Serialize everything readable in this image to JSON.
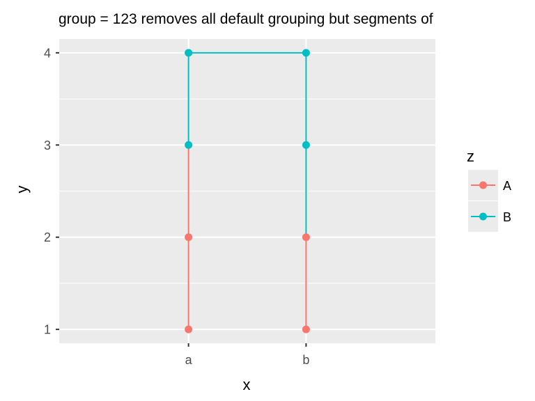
{
  "chart_data": {
    "type": "line",
    "title": "group = 123 removes all default grouping but segments of",
    "xlabel": "x",
    "ylabel": "y",
    "categories": [
      "a",
      "b"
    ],
    "yticks": [
      1,
      2,
      3,
      4
    ],
    "ylim": [
      0.85,
      4.15
    ],
    "grid": true,
    "legend": {
      "title": "z",
      "position": "right",
      "entries": [
        {
          "label": "A",
          "color": "#F8766D"
        },
        {
          "label": "B",
          "color": "#00BFC4"
        }
      ]
    },
    "points": [
      {
        "x": "a",
        "y": 1,
        "z": "A"
      },
      {
        "x": "a",
        "y": 2,
        "z": "A"
      },
      {
        "x": "a",
        "y": 3,
        "z": "B"
      },
      {
        "x": "a",
        "y": 4,
        "z": "B"
      },
      {
        "x": "b",
        "y": 4,
        "z": "B"
      },
      {
        "x": "b",
        "y": 3,
        "z": "B"
      },
      {
        "x": "b",
        "y": 2,
        "z": "A"
      },
      {
        "x": "b",
        "y": 1,
        "z": "A"
      }
    ],
    "colors": {
      "A": "#F8766D",
      "B": "#00BFC4",
      "panel": "#EBEBEB",
      "grid": "#FFFFFF"
    }
  }
}
